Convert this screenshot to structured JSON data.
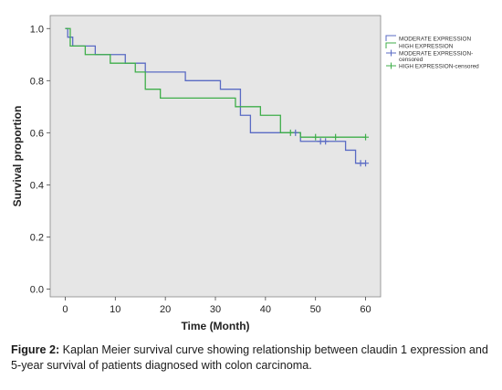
{
  "chart_data": {
    "type": "line",
    "subtype": "kaplan-meier-step",
    "xlabel": "Time (Month)",
    "ylabel": "Survival proportion",
    "xlim": [
      -3,
      63
    ],
    "ylim": [
      -0.03,
      1.05
    ],
    "xticks": [
      0,
      10,
      20,
      30,
      40,
      50,
      60
    ],
    "yticks": [
      0.0,
      0.2,
      0.4,
      0.6,
      0.8,
      1.0
    ],
    "ytick_labels": [
      "0.0",
      "0.2",
      "0.4",
      "0.6",
      "0.8",
      "1.0"
    ],
    "grid": false,
    "legend_position": "right",
    "background": "#e6e6e6",
    "series": [
      {
        "name": "MODERATE EXPRESSION",
        "color": "#5a6bc4",
        "x": [
          0,
          0.5,
          1.5,
          6,
          12,
          16,
          24,
          31,
          35,
          37,
          47,
          56,
          58,
          60
        ],
        "y": [
          1.0,
          0.967,
          0.933,
          0.9,
          0.867,
          0.833,
          0.8,
          0.767,
          0.667,
          0.6,
          0.567,
          0.533,
          0.483,
          0.483
        ]
      },
      {
        "name": "HIGH EXPRESSION",
        "color": "#3fae4a",
        "x": [
          0,
          1,
          4,
          9,
          14,
          16,
          19,
          34,
          39,
          43,
          47,
          60
        ],
        "y": [
          1.0,
          0.933,
          0.9,
          0.867,
          0.833,
          0.767,
          0.733,
          0.7,
          0.667,
          0.6,
          0.583,
          0.583
        ]
      },
      {
        "name": "MODERATE EXPRESSION-censored",
        "color": "#5a6bc4",
        "marker": "+",
        "x": [
          46,
          51,
          52,
          59,
          60
        ],
        "y": [
          0.6,
          0.567,
          0.567,
          0.483,
          0.483
        ]
      },
      {
        "name": "HIGH EXPRESSION-censored",
        "color": "#3fae4a",
        "marker": "+",
        "x": [
          45,
          50,
          54,
          60
        ],
        "y": [
          0.6,
          0.583,
          0.583,
          0.583
        ]
      }
    ]
  },
  "caption": {
    "label": "Figure 2:",
    "text": " Kaplan Meier survival curve showing relationship between claudin 1 expression and 5-year survival of patients diagnosed with colon carcinoma."
  }
}
